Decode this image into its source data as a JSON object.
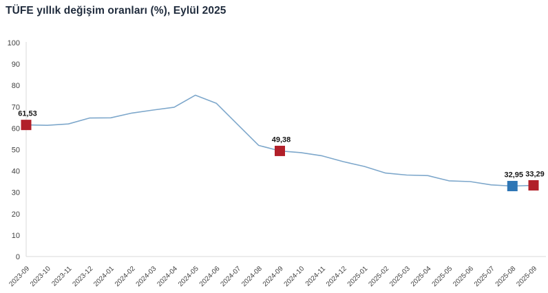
{
  "title": "TÜFE yıllık değişim oranları (%), Eylül 2025",
  "chart_data": {
    "type": "line",
    "title": "TÜFE yıllık değişim oranları (%), Eylül 2025",
    "categories": [
      "2023-09",
      "2023-10",
      "2023-11",
      "2023-12",
      "2024-01",
      "2024-02",
      "2024-03",
      "2024-04",
      "2024-05",
      "2024-06",
      "2024-07",
      "2024-08",
      "2024-09",
      "2024-10",
      "2024-11",
      "2024-12",
      "2025-01",
      "2025-02",
      "2025-03",
      "2025-04",
      "2025-05",
      "2025-06",
      "2025-07",
      "2025-08",
      "2025-09"
    ],
    "values": [
      61.53,
      61.36,
      61.98,
      64.77,
      64.86,
      67.07,
      68.5,
      69.8,
      75.45,
      71.6,
      61.78,
      51.97,
      49.38,
      48.58,
      47.09,
      44.38,
      42.12,
      39.05,
      38.1,
      37.86,
      35.41,
      35.05,
      33.52,
      32.95,
      33.29
    ],
    "ylim": [
      0,
      100
    ],
    "ytick_step": 10,
    "grid": false,
    "legend": "none",
    "line_color": "#7da7cb",
    "axis_color": "#d9d9d9",
    "tick_color": "#3f3f3f",
    "highlight_red": "#b11f29",
    "highlight_blue": "#2e76b5",
    "highlights": [
      {
        "index": 0,
        "category": "2023-09",
        "value": 61.53,
        "label": "61,53",
        "color": "#b11f29"
      },
      {
        "index": 12,
        "category": "2024-09",
        "value": 49.38,
        "label": "49,38",
        "color": "#b11f29"
      },
      {
        "index": 23,
        "category": "2025-08",
        "value": 32.95,
        "label": "32,95",
        "color": "#2e76b5"
      },
      {
        "index": 24,
        "category": "2025-09",
        "value": 33.29,
        "label": "33,29",
        "color": "#b11f29"
      }
    ]
  }
}
